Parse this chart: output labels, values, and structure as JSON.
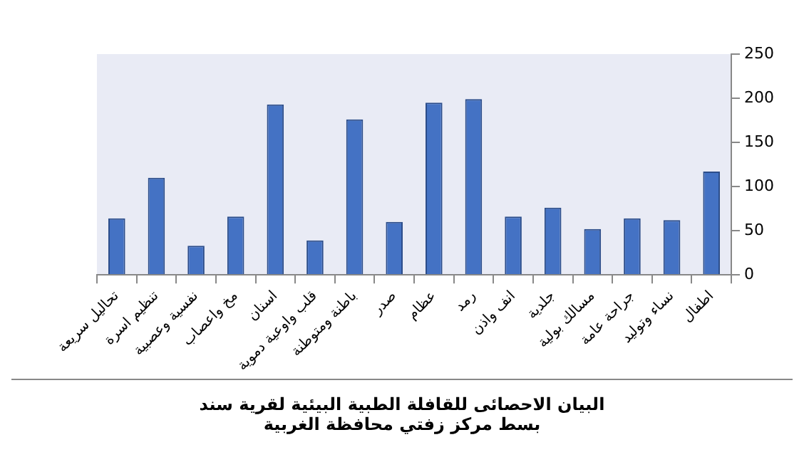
{
  "chart_data": {
    "type": "bar",
    "title": "البيان الاحصائى للقافلة الطبية البيئية لقرية سند بسط مركز زفتي محافظة الغربية",
    "categories": [
      "تحاليل سريعة",
      "تنظيم اسرة",
      "نفسية وعصبية",
      "مخ واعصاب",
      "اسنان",
      "قلب واوعية دموية",
      "باطنة ومتوطنة",
      "صدر",
      "عظام",
      "رمد",
      "انف واذن",
      "جلدية",
      "مسالك بولية",
      "جراحة عامة",
      "نساء وتوليد",
      "اطفال"
    ],
    "values": [
      64,
      110,
      33,
      66,
      193,
      39,
      176,
      60,
      195,
      199,
      66,
      76,
      52,
      64,
      62,
      117
    ],
    "color": "#4472c4",
    "ylim": [
      0,
      250
    ],
    "yticks": [
      0,
      50,
      100,
      150,
      200,
      250
    ],
    "grid": false,
    "legend": false
  }
}
